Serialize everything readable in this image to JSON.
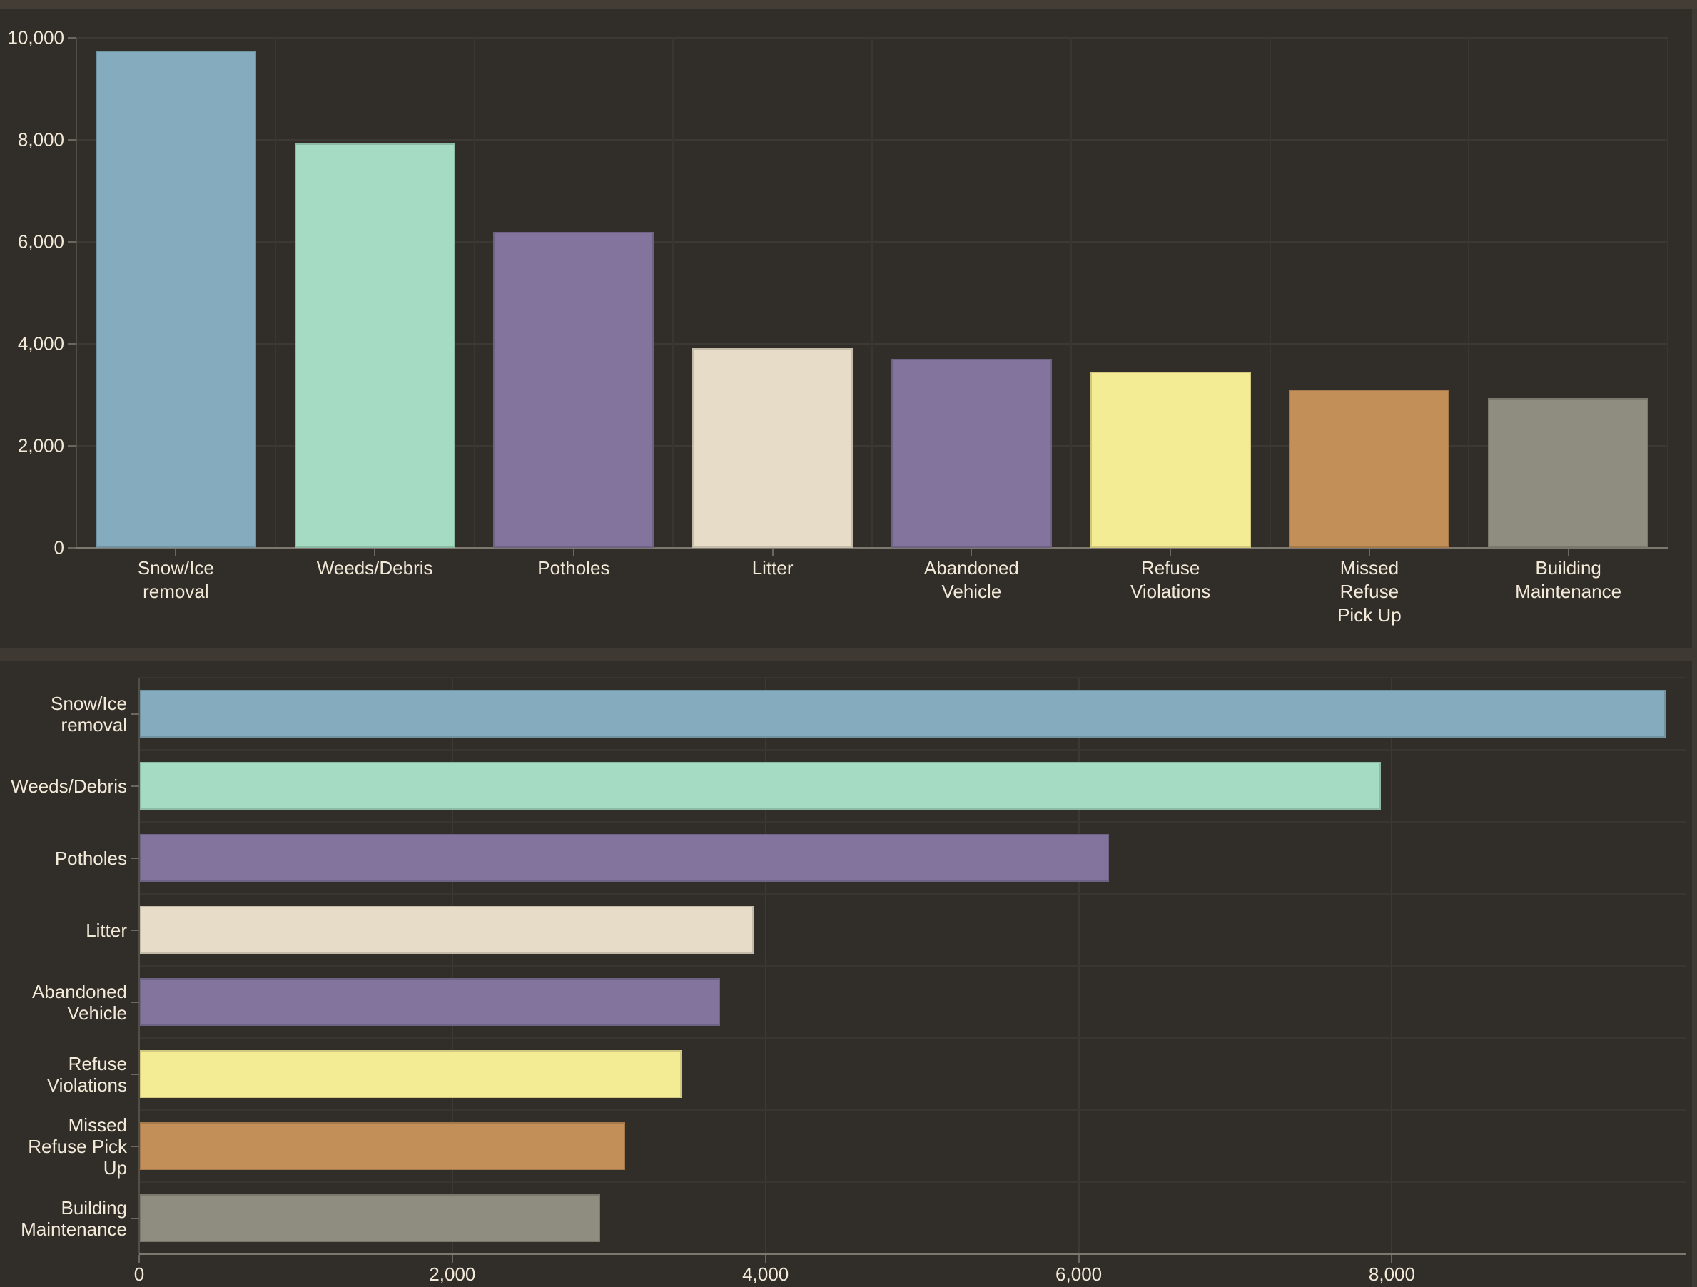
{
  "page": {
    "background": "#312E29",
    "top_strip_color": "#433D36",
    "divider_color": "#3E3932",
    "text_color": "#F2E9D8"
  },
  "chart_data": [
    {
      "type": "bar",
      "orientation": "vertical",
      "title": "",
      "categories": [
        "Snow/Ice removal",
        "Weeds/Debris",
        "Potholes",
        "Litter",
        "Abandoned Vehicle",
        "Refuse Violations",
        "Missed Refuse Pick Up",
        "Building Maintenance"
      ],
      "category_lines": [
        [
          "Snow/Ice",
          "removal"
        ],
        [
          "Weeds/Debris"
        ],
        [
          "Potholes"
        ],
        [
          "Litter"
        ],
        [
          "Abandoned",
          "Vehicle"
        ],
        [
          "Refuse",
          "Violations"
        ],
        [
          "Missed",
          "Refuse",
          "Pick Up"
        ],
        [
          "Building",
          "Maintenance"
        ]
      ],
      "values": [
        9745,
        7925,
        6190,
        3920,
        3705,
        3460,
        3100,
        2940
      ],
      "bar_colors": [
        "#84ACBE",
        "#A5DBC2",
        "#82749D",
        "#E7DCC7",
        "#82749D",
        "#F4EB95",
        "#C28F58",
        "#8E8D80"
      ],
      "xlabel": "",
      "ylabel": "",
      "ylim": [
        0,
        10000
      ],
      "y_tick_values": [
        0,
        2000,
        4000,
        6000,
        8000,
        10000
      ],
      "y_tick_labels": [
        "0",
        "2,000",
        "4,000",
        "6,000",
        "8,000",
        "10,000"
      ],
      "grid": true,
      "legend": "none"
    },
    {
      "type": "bar",
      "orientation": "horizontal",
      "title": "",
      "categories": [
        "Snow/Ice removal",
        "Weeds/Debris",
        "Potholes",
        "Litter",
        "Abandoned Vehicle",
        "Refuse Violations",
        "Missed Refuse Pick Up",
        "Building Maintenance"
      ],
      "category_lines": [
        [
          "Snow/Ice",
          "removal"
        ],
        [
          "Weeds/Debris"
        ],
        [
          "Potholes"
        ],
        [
          "Litter"
        ],
        [
          "Abandoned",
          "Vehicle"
        ],
        [
          "Refuse",
          "Violations"
        ],
        [
          "Missed",
          "Refuse Pick",
          "Up"
        ],
        [
          "Building",
          "Maintenance"
        ]
      ],
      "values": [
        9745,
        7925,
        6190,
        3920,
        3705,
        3460,
        3100,
        2940
      ],
      "bar_colors": [
        "#84ACBE",
        "#A5DBC2",
        "#82749D",
        "#E7DCC7",
        "#82749D",
        "#F4EB95",
        "#C28F58",
        "#8E8D80"
      ],
      "xlabel": "",
      "ylabel": "",
      "xlim": [
        0,
        9880
      ],
      "x_tick_values": [
        0,
        2000,
        4000,
        6000,
        8000
      ],
      "x_tick_labels": [
        "0",
        "2,000",
        "4,000",
        "6,000",
        "8,000"
      ],
      "grid": true,
      "legend": "none"
    }
  ]
}
